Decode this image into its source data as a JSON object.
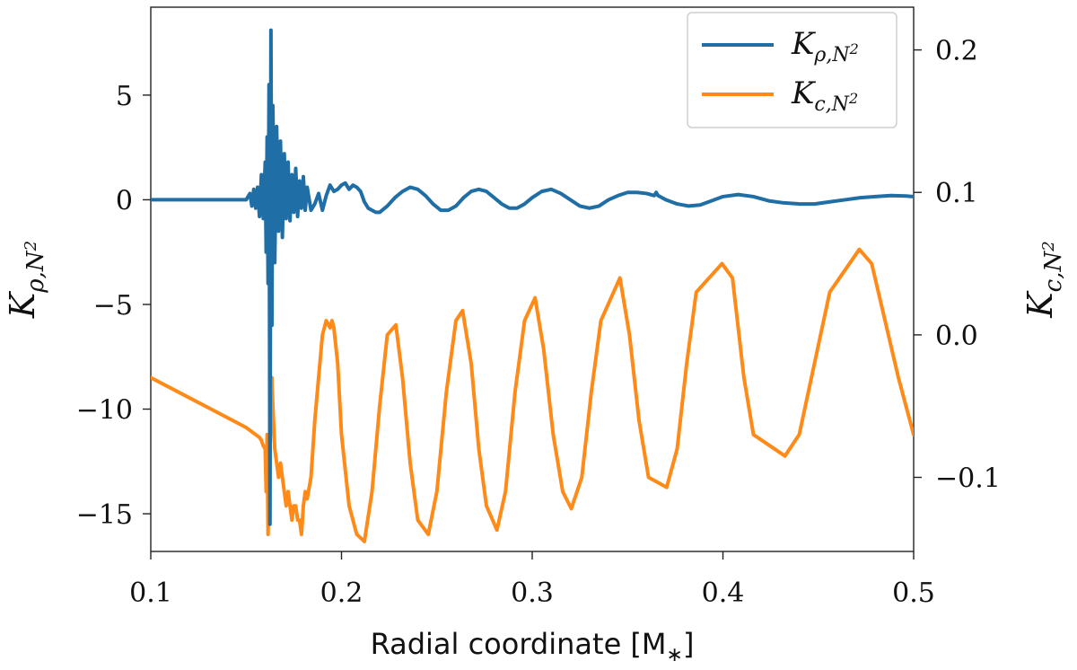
{
  "chart_data": {
    "type": "line",
    "xlabel": "Radial coordinate [M*]",
    "ylabel_left": "K_{ρ,N²}",
    "ylabel_right": "K_{c,N²}",
    "xlim": [
      0.1,
      0.5
    ],
    "ylim_left": [
      -16.8,
      9.2
    ],
    "ylim_right": [
      -0.152,
      0.23
    ],
    "x_ticks": [
      0.1,
      0.2,
      0.3,
      0.4,
      0.5
    ],
    "x_tick_labels": [
      "0.1",
      "0.2",
      "0.3",
      "0.4",
      "0.5"
    ],
    "y_left_ticks": [
      5,
      0,
      -5,
      -10,
      -15
    ],
    "y_left_tick_labels": [
      "5",
      "0",
      "−5",
      "−10",
      "−15"
    ],
    "y_right_ticks": [
      0.2,
      0.1,
      0.0,
      -0.1
    ],
    "y_right_tick_labels": [
      "0.2",
      "0.1",
      "0.0",
      "−0.1"
    ],
    "grid": false,
    "legend_position": "top-right",
    "series": [
      {
        "name": "K_{ρ,N²}",
        "axis": "left",
        "color": "#1f6ea5",
        "x": [
          0.1,
          0.15,
          0.152,
          0.153,
          0.154,
          0.155,
          0.156,
          0.157,
          0.158,
          0.159,
          0.16,
          0.1605,
          0.161,
          0.1615,
          0.162,
          0.1625,
          0.163,
          0.1635,
          0.164,
          0.165,
          0.166,
          0.167,
          0.168,
          0.169,
          0.17,
          0.171,
          0.172,
          0.173,
          0.174,
          0.175,
          0.176,
          0.177,
          0.178,
          0.179,
          0.18,
          0.181,
          0.182,
          0.184,
          0.186,
          0.188,
          0.19,
          0.192,
          0.194,
          0.196,
          0.198,
          0.2,
          0.202,
          0.204,
          0.206,
          0.208,
          0.21,
          0.212,
          0.214,
          0.216,
          0.218,
          0.22,
          0.224,
          0.228,
          0.232,
          0.236,
          0.24,
          0.244,
          0.248,
          0.252,
          0.256,
          0.26,
          0.264,
          0.268,
          0.272,
          0.276,
          0.28,
          0.284,
          0.288,
          0.292,
          0.296,
          0.3,
          0.305,
          0.31,
          0.315,
          0.32,
          0.325,
          0.33,
          0.335,
          0.34,
          0.345,
          0.35,
          0.355,
          0.36,
          0.364,
          0.365,
          0.366,
          0.37,
          0.376,
          0.382,
          0.388,
          0.394,
          0.4,
          0.408,
          0.416,
          0.424,
          0.432,
          0.44,
          0.448,
          0.456,
          0.464,
          0.472,
          0.48,
          0.488,
          0.496,
          0.5
        ],
        "y": [
          0,
          0,
          0.3,
          -0.3,
          0.5,
          -0.4,
          0.6,
          -0.8,
          1.2,
          -0.9,
          1.8,
          -2.5,
          3.0,
          -4.0,
          5.5,
          -15.5,
          8.1,
          -6.0,
          4.5,
          -3.0,
          3.5,
          -1.5,
          2.8,
          -1.8,
          2.2,
          -0.9,
          1.8,
          -1.0,
          1.2,
          -0.6,
          1.5,
          -0.8,
          0.9,
          -0.4,
          1.1,
          -0.5,
          0.6,
          -0.5,
          -0.2,
          0.3,
          -0.5,
          0.2,
          0.7,
          0.4,
          0.5,
          0.7,
          0.8,
          0.5,
          0.7,
          0.6,
          0.4,
          -0.1,
          -0.4,
          -0.5,
          -0.6,
          -0.6,
          -0.3,
          0.1,
          0.4,
          0.6,
          0.5,
          0.2,
          -0.2,
          -0.5,
          -0.5,
          -0.3,
          0.1,
          0.4,
          0.5,
          0.4,
          0.1,
          -0.2,
          -0.4,
          -0.4,
          -0.2,
          0.1,
          0.4,
          0.5,
          0.3,
          0.0,
          -0.3,
          -0.4,
          -0.3,
          0.0,
          0.2,
          0.35,
          0.35,
          0.3,
          0.2,
          0.35,
          0.2,
          0.0,
          -0.2,
          -0.3,
          -0.25,
          -0.05,
          0.15,
          0.25,
          0.15,
          -0.05,
          -0.15,
          -0.2,
          -0.2,
          -0.1,
          0.0,
          0.1,
          0.15,
          0.2,
          0.18,
          0.15
        ]
      },
      {
        "name": "K_{c,N²}",
        "axis": "right",
        "color": "#ff8a17",
        "x": [
          0.1,
          0.11,
          0.12,
          0.13,
          0.14,
          0.15,
          0.155,
          0.157,
          0.158,
          0.159,
          0.16,
          0.1605,
          0.161,
          0.1615,
          0.162,
          0.1625,
          0.163,
          0.1635,
          0.164,
          0.165,
          0.166,
          0.167,
          0.168,
          0.169,
          0.17,
          0.171,
          0.172,
          0.173,
          0.174,
          0.175,
          0.176,
          0.177,
          0.178,
          0.179,
          0.18,
          0.181,
          0.182,
          0.184,
          0.186,
          0.188,
          0.19,
          0.192,
          0.194,
          0.195,
          0.196,
          0.198,
          0.2,
          0.204,
          0.208,
          0.212,
          0.216,
          0.22,
          0.224,
          0.2285,
          0.232,
          0.236,
          0.24,
          0.2455,
          0.25,
          0.255,
          0.26,
          0.2635,
          0.268,
          0.272,
          0.276,
          0.2815,
          0.286,
          0.291,
          0.296,
          0.3015,
          0.306,
          0.311,
          0.316,
          0.3205,
          0.326,
          0.331,
          0.336,
          0.346,
          0.351,
          0.356,
          0.361,
          0.3705,
          0.376,
          0.381,
          0.386,
          0.3995,
          0.405,
          0.411,
          0.416,
          0.4325,
          0.44,
          0.448,
          0.456,
          0.4715,
          0.478,
          0.485,
          0.492,
          0.5
        ],
        "y": [
          -0.03,
          -0.037,
          -0.044,
          -0.051,
          -0.058,
          -0.065,
          -0.07,
          -0.072,
          -0.074,
          -0.078,
          -0.08,
          -0.11,
          -0.07,
          -0.14,
          -0.095,
          -0.08,
          -0.06,
          -0.03,
          -0.05,
          -0.08,
          -0.09,
          -0.1,
          -0.09,
          -0.1,
          -0.11,
          -0.12,
          -0.11,
          -0.12,
          -0.13,
          -0.12,
          -0.12,
          -0.13,
          -0.13,
          -0.14,
          -0.12,
          -0.11,
          -0.115,
          -0.1,
          -0.06,
          -0.03,
          0.0,
          0.01,
          0.005,
          0.01,
          0.005,
          -0.02,
          -0.07,
          -0.12,
          -0.14,
          -0.145,
          -0.11,
          -0.05,
          0.0,
          0.007,
          -0.03,
          -0.09,
          -0.13,
          -0.14,
          -0.11,
          -0.04,
          0.01,
          0.017,
          -0.02,
          -0.08,
          -0.12,
          -0.137,
          -0.11,
          -0.04,
          0.01,
          0.026,
          -0.01,
          -0.07,
          -0.11,
          -0.122,
          -0.1,
          -0.04,
          0.01,
          0.04,
          0.0,
          -0.06,
          -0.1,
          -0.107,
          -0.08,
          -0.02,
          0.03,
          0.05,
          0.04,
          -0.03,
          -0.07,
          -0.085,
          -0.07,
          -0.02,
          0.03,
          0.06,
          0.05,
          0.01,
          -0.03,
          -0.07
        ]
      }
    ]
  }
}
